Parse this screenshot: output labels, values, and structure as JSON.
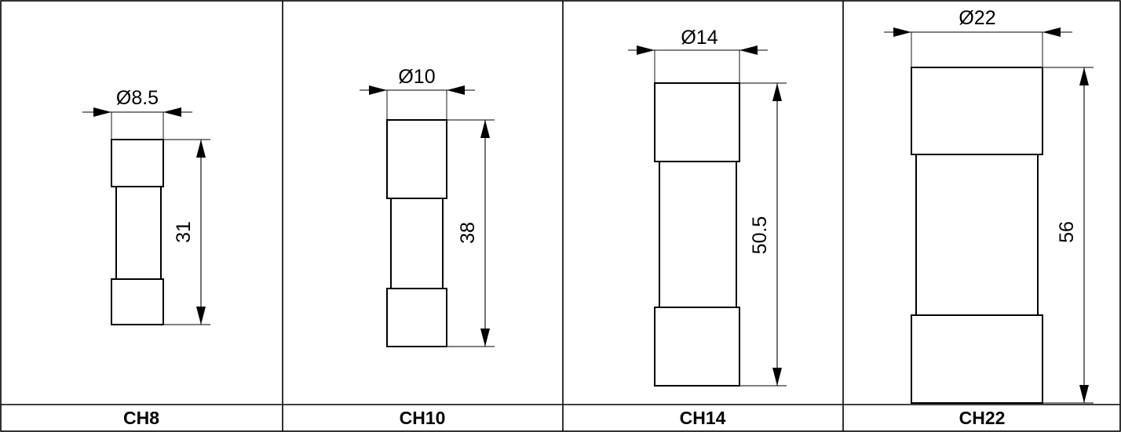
{
  "fuses": [
    {
      "model": "CH8",
      "diameter_label": "Ø8.5",
      "length_label": "31"
    },
    {
      "model": "CH10",
      "diameter_label": "Ø10",
      "length_label": "38"
    },
    {
      "model": "CH14",
      "diameter_label": "Ø14",
      "length_label": "50.5"
    },
    {
      "model": "CH22",
      "diameter_label": "Ø22",
      "length_label": "56"
    }
  ]
}
